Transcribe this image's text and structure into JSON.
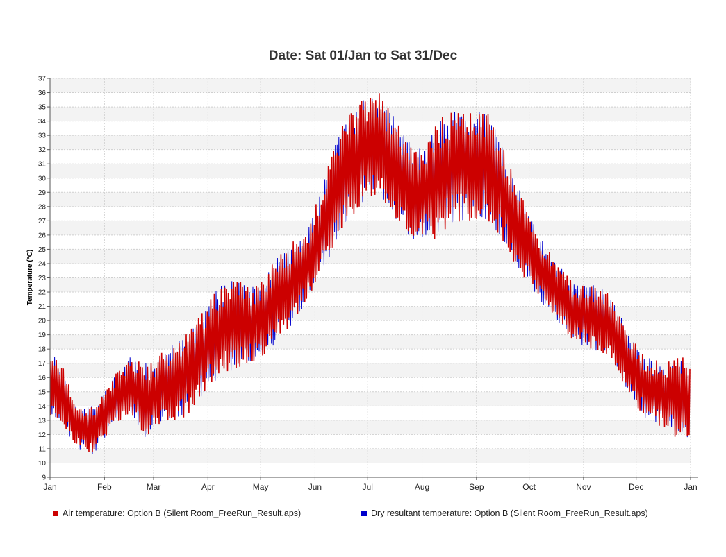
{
  "chart_data": {
    "type": "line",
    "title": "Date: Sat 01/Jan to Sat 31/Dec",
    "ylabel": "Temperature (°C)",
    "xlabel": "",
    "ylim": [
      9,
      37
    ],
    "yticks": [
      9,
      10,
      11,
      12,
      13,
      14,
      15,
      16,
      17,
      18,
      19,
      20,
      21,
      22,
      23,
      24,
      25,
      26,
      27,
      28,
      29,
      30,
      31,
      32,
      33,
      34,
      35,
      36,
      37
    ],
    "xlim_days": [
      0,
      365
    ],
    "x_tick_labels": [
      "Jan",
      "Feb",
      "Mar",
      "Apr",
      "May",
      "Jun",
      "Jul",
      "Aug",
      "Sep",
      "Oct",
      "Nov",
      "Dec",
      "Jan"
    ],
    "grid": true,
    "legend_position": "bottom",
    "series": [
      {
        "name": "Air temperature: Option B (Silent Room_FreeRun_Result.aps)",
        "color": "#cc0000",
        "daily_min_max": [
          [
            "Jan",
            13.0,
            17.5
          ],
          [
            "Jan",
            11.0,
            14.0
          ],
          [
            "Jan",
            10.5,
            14.0
          ],
          [
            "Feb",
            12.5,
            16.0
          ],
          [
            "Feb",
            13.5,
            17.5
          ],
          [
            "Feb",
            11.5,
            17.0
          ],
          [
            "Mar",
            13.0,
            18.0
          ],
          [
            "Mar",
            13.0,
            19.0
          ],
          [
            "Mar",
            14.5,
            20.5
          ],
          [
            "Apr",
            16.0,
            22.5
          ],
          [
            "Apr",
            16.5,
            23.0
          ],
          [
            "Apr",
            17.0,
            22.5
          ],
          [
            "May",
            18.0,
            24.0
          ],
          [
            "May",
            19.5,
            25.5
          ],
          [
            "May",
            21.5,
            26.5
          ],
          [
            "Jun",
            23.5,
            30.5
          ],
          [
            "Jun",
            26.5,
            34.0
          ],
          [
            "Jun",
            28.0,
            35.5
          ],
          [
            "Jul",
            28.5,
            36.0
          ],
          [
            "Jul",
            27.0,
            34.0
          ],
          [
            "Jul",
            25.5,
            32.0
          ],
          [
            "Aug",
            25.5,
            33.5
          ],
          [
            "Aug",
            26.5,
            35.0
          ],
          [
            "Aug",
            27.0,
            34.5
          ],
          [
            "Sep",
            27.0,
            35.0
          ],
          [
            "Sep",
            25.5,
            32.0
          ],
          [
            "Sep",
            23.0,
            29.0
          ],
          [
            "Oct",
            21.5,
            26.0
          ],
          [
            "Oct",
            20.0,
            24.0
          ],
          [
            "Oct",
            18.5,
            22.5
          ],
          [
            "Nov",
            18.0,
            22.5
          ],
          [
            "Nov",
            17.5,
            22.0
          ],
          [
            "Nov",
            15.0,
            19.0
          ],
          [
            "Dec",
            13.0,
            17.5
          ],
          [
            "Dec",
            12.5,
            17.0
          ],
          [
            "Dec",
            11.5,
            17.5
          ]
        ]
      },
      {
        "name": "Dry resultant temperature: Option B (Silent Room_FreeRun_Result.aps)",
        "color": "#0000cc",
        "note_visible": "mostly hidden behind air temperature series"
      }
    ]
  }
}
